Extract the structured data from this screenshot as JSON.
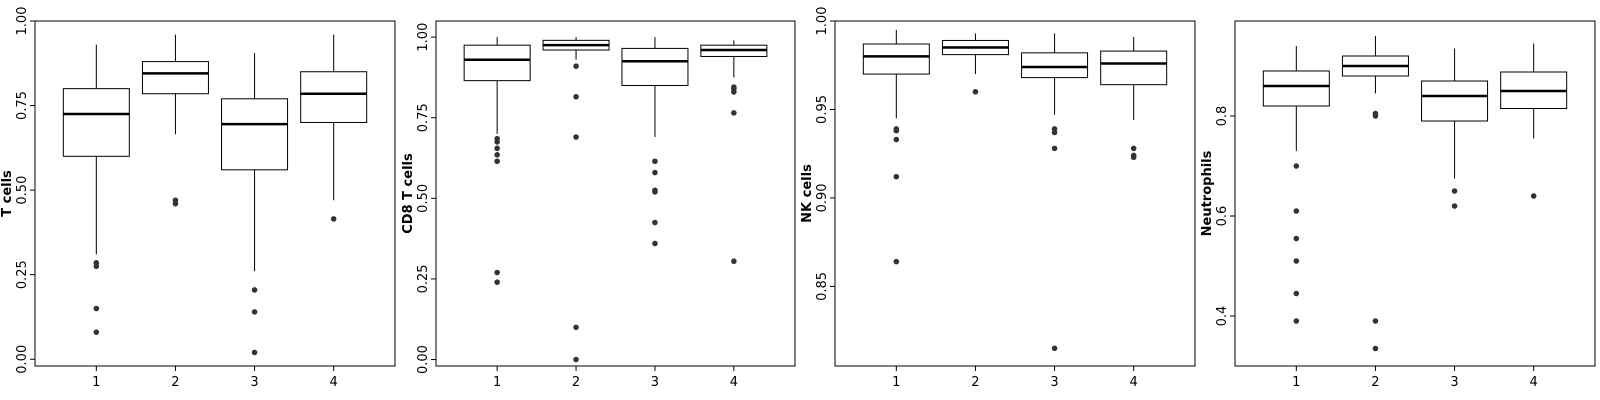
{
  "chart_data": [
    {
      "type": "boxplot",
      "ylabel": "T cells",
      "ylim": [
        -0.02,
        1.0
      ],
      "yticks": [
        0.0,
        0.25,
        0.5,
        0.75,
        1.0
      ],
      "ytick_labels": [
        "0.00",
        "0.25",
        "0.50",
        "0.75",
        "1.00"
      ],
      "categories": [
        "1",
        "2",
        "3",
        "4"
      ],
      "boxes": [
        {
          "category": "1",
          "whisker_low": 0.31,
          "q1": 0.6,
          "median": 0.725,
          "q3": 0.8,
          "whisker_high": 0.93,
          "outliers": [
            0.285,
            0.275,
            0.15,
            0.08
          ]
        },
        {
          "category": "2",
          "whisker_low": 0.665,
          "q1": 0.785,
          "median": 0.845,
          "q3": 0.88,
          "whisker_high": 0.96,
          "outliers": [
            0.47,
            0.46
          ]
        },
        {
          "category": "3",
          "whisker_low": 0.26,
          "q1": 0.56,
          "median": 0.695,
          "q3": 0.77,
          "whisker_high": 0.905,
          "outliers": [
            0.205,
            0.14,
            0.02
          ]
        },
        {
          "category": "4",
          "whisker_low": 0.47,
          "q1": 0.7,
          "median": 0.785,
          "q3": 0.85,
          "whisker_high": 0.96,
          "outliers": [
            0.415
          ]
        }
      ]
    },
    {
      "type": "boxplot",
      "ylabel": "CD8 T cells",
      "ylim": [
        -0.02,
        1.05
      ],
      "yticks": [
        0.0,
        0.25,
        0.5,
        0.75,
        1.0
      ],
      "ytick_labels": [
        "0.00",
        "0.25",
        "0.50",
        "0.75",
        "1.00"
      ],
      "categories": [
        "1",
        "2",
        "3",
        "4"
      ],
      "boxes": [
        {
          "category": "1",
          "whisker_low": 0.7,
          "q1": 0.865,
          "median": 0.93,
          "q3": 0.975,
          "whisker_high": 1.0,
          "outliers": [
            0.685,
            0.675,
            0.655,
            0.635,
            0.615,
            0.27,
            0.24
          ]
        },
        {
          "category": "2",
          "whisker_low": 0.93,
          "q1": 0.96,
          "median": 0.975,
          "q3": 0.99,
          "whisker_high": 1.0,
          "outliers": [
            0.91,
            0.815,
            0.69,
            0.1,
            0.0
          ]
        },
        {
          "category": "3",
          "whisker_low": 0.69,
          "q1": 0.85,
          "median": 0.925,
          "q3": 0.965,
          "whisker_high": 1.0,
          "outliers": [
            0.615,
            0.58,
            0.525,
            0.52,
            0.425,
            0.36
          ]
        },
        {
          "category": "4",
          "whisker_low": 0.875,
          "q1": 0.94,
          "median": 0.96,
          "q3": 0.975,
          "whisker_high": 0.99,
          "outliers": [
            0.845,
            0.84,
            0.83,
            0.765,
            0.305
          ]
        }
      ]
    },
    {
      "type": "boxplot",
      "ylabel": "NK cells",
      "ylim": [
        0.805,
        1.0
      ],
      "yticks": [
        0.85,
        0.9,
        0.95,
        1.0
      ],
      "ytick_labels": [
        "0.85",
        "0.90",
        "0.95",
        "1.00"
      ],
      "categories": [
        "1",
        "2",
        "3",
        "4"
      ],
      "boxes": [
        {
          "category": "1",
          "whisker_low": 0.945,
          "q1": 0.97,
          "median": 0.98,
          "q3": 0.987,
          "whisker_high": 0.995,
          "outliers": [
            0.939,
            0.938,
            0.933,
            0.912,
            0.864
          ]
        },
        {
          "category": "2",
          "whisker_low": 0.97,
          "q1": 0.981,
          "median": 0.985,
          "q3": 0.989,
          "whisker_high": 0.993,
          "outliers": [
            0.96
          ]
        },
        {
          "category": "3",
          "whisker_low": 0.947,
          "q1": 0.968,
          "median": 0.974,
          "q3": 0.982,
          "whisker_high": 0.993,
          "outliers": [
            0.939,
            0.937,
            0.928,
            0.815
          ]
        },
        {
          "category": "4",
          "whisker_low": 0.944,
          "q1": 0.964,
          "median": 0.976,
          "q3": 0.983,
          "whisker_high": 0.991,
          "outliers": [
            0.928,
            0.924,
            0.923
          ]
        }
      ]
    },
    {
      "type": "boxplot",
      "ylabel": "Neutrophils",
      "ylim": [
        0.3,
        0.99
      ],
      "yticks": [
        0.4,
        0.6,
        0.8
      ],
      "ytick_labels": [
        "0.4",
        "0.6",
        "0.8"
      ],
      "categories": [
        "1",
        "2",
        "3",
        "4"
      ],
      "boxes": [
        {
          "category": "1",
          "whisker_low": 0.73,
          "q1": 0.82,
          "median": 0.86,
          "q3": 0.89,
          "whisker_high": 0.94,
          "outliers": [
            0.7,
            0.61,
            0.555,
            0.51,
            0.445,
            0.39
          ]
        },
        {
          "category": "2",
          "whisker_low": 0.845,
          "q1": 0.88,
          "median": 0.9,
          "q3": 0.92,
          "whisker_high": 0.96,
          "outliers": [
            0.805,
            0.8,
            0.39,
            0.335
          ]
        },
        {
          "category": "3",
          "whisker_low": 0.675,
          "q1": 0.79,
          "median": 0.84,
          "q3": 0.87,
          "whisker_high": 0.935,
          "outliers": [
            0.65,
            0.62
          ]
        },
        {
          "category": "4",
          "whisker_low": 0.755,
          "q1": 0.815,
          "median": 0.85,
          "q3": 0.888,
          "whisker_high": 0.945,
          "outliers": [
            0.64
          ]
        }
      ]
    }
  ]
}
